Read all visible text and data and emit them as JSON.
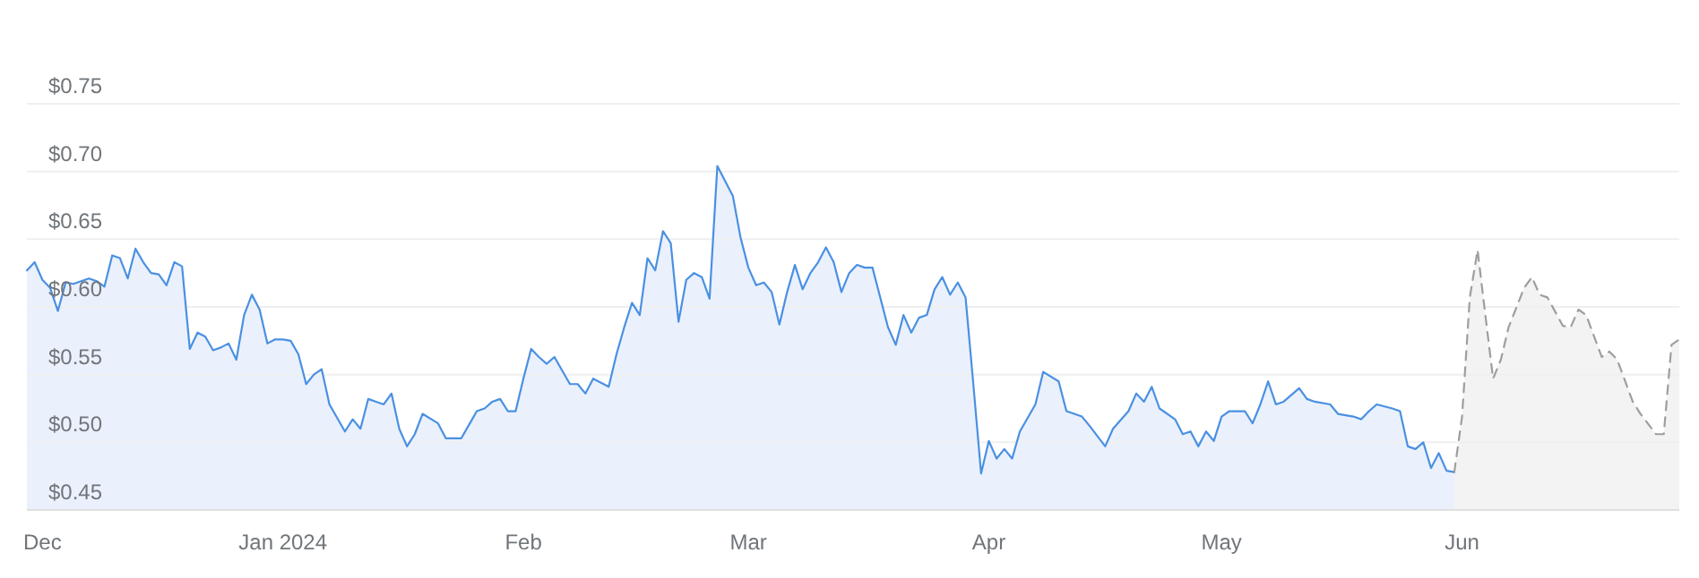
{
  "chart_data": {
    "type": "area",
    "xlim": [
      "2023-11-29",
      "2024-06-29"
    ],
    "ylim": [
      0.45,
      0.75
    ],
    "xticks": [
      {
        "value": "2023-12-01",
        "label": "Dec"
      },
      {
        "value": "2024-01-01",
        "label": "Jan 2024"
      },
      {
        "value": "2024-02-01",
        "label": "Feb"
      },
      {
        "value": "2024-03-01",
        "label": "Mar"
      },
      {
        "value": "2024-04-01",
        "label": "Apr"
      },
      {
        "value": "2024-05-01",
        "label": "May"
      },
      {
        "value": "2024-06-01",
        "label": "Jun"
      }
    ],
    "yticks": [
      {
        "value": 0.45,
        "label": "$0.45"
      },
      {
        "value": 0.5,
        "label": "$0.50"
      },
      {
        "value": 0.55,
        "label": "$0.55"
      },
      {
        "value": 0.6,
        "label": "$0.60"
      },
      {
        "value": 0.65,
        "label": "$0.65"
      },
      {
        "value": 0.7,
        "label": "$0.70"
      },
      {
        "value": 0.75,
        "label": "$0.75"
      }
    ],
    "grid": "y",
    "series": [
      {
        "color": "#4a90e2",
        "line_style": "solid",
        "x": [
          "2023-11-29",
          "2023-11-30",
          "2023-12-01",
          "2023-12-02",
          "2023-12-03",
          "2023-12-04",
          "2023-12-05",
          "2023-12-07",
          "2023-12-08",
          "2023-12-09",
          "2023-12-10",
          "2023-12-11",
          "2023-12-12",
          "2023-12-13",
          "2023-12-14",
          "2023-12-15",
          "2023-12-16",
          "2023-12-17",
          "2023-12-18",
          "2023-12-19",
          "2023-12-20",
          "2023-12-21",
          "2023-12-22",
          "2023-12-23",
          "2023-12-24",
          "2023-12-25",
          "2023-12-26",
          "2023-12-27",
          "2023-12-28",
          "2023-12-29",
          "2023-12-30",
          "2023-12-31",
          "2024-01-01",
          "2024-01-02",
          "2024-01-03",
          "2024-01-04",
          "2024-01-05",
          "2024-01-06",
          "2024-01-07",
          "2024-01-09",
          "2024-01-10",
          "2024-01-11",
          "2024-01-12",
          "2024-01-13",
          "2024-01-14",
          "2024-01-15",
          "2024-01-16",
          "2024-01-17",
          "2024-01-18",
          "2024-01-19",
          "2024-01-21",
          "2024-01-22",
          "2024-01-23",
          "2024-01-24",
          "2024-01-25",
          "2024-01-26",
          "2024-01-27",
          "2024-01-28",
          "2024-01-29",
          "2024-01-30",
          "2024-01-31",
          "2024-02-01",
          "2024-02-02",
          "2024-02-03",
          "2024-02-04",
          "2024-02-05",
          "2024-02-07",
          "2024-02-08",
          "2024-02-09",
          "2024-02-10",
          "2024-02-12",
          "2024-02-13",
          "2024-02-14",
          "2024-02-15",
          "2024-02-16",
          "2024-02-17",
          "2024-02-18",
          "2024-02-19",
          "2024-02-20",
          "2024-02-21",
          "2024-02-22",
          "2024-02-23",
          "2024-02-24",
          "2024-02-25",
          "2024-02-26",
          "2024-02-27",
          "2024-02-28",
          "2024-02-29",
          "2024-03-01",
          "2024-03-02",
          "2024-03-03",
          "2024-03-04",
          "2024-03-05",
          "2024-03-06",
          "2024-03-07",
          "2024-03-08",
          "2024-03-09",
          "2024-03-10",
          "2024-03-11",
          "2024-03-12",
          "2024-03-13",
          "2024-03-14",
          "2024-03-15",
          "2024-03-16",
          "2024-03-17",
          "2024-03-18",
          "2024-03-19",
          "2024-03-20",
          "2024-03-21",
          "2024-03-22",
          "2024-03-23",
          "2024-03-24",
          "2024-03-25",
          "2024-03-26",
          "2024-03-27",
          "2024-03-28",
          "2024-03-29",
          "2024-03-30",
          "2024-03-31",
          "2024-04-01",
          "2024-04-02",
          "2024-04-03",
          "2024-04-04",
          "2024-04-05",
          "2024-04-07",
          "2024-04-08",
          "2024-04-10",
          "2024-04-11",
          "2024-04-12",
          "2024-04-13",
          "2024-04-14",
          "2024-04-16",
          "2024-04-17",
          "2024-04-19",
          "2024-04-20",
          "2024-04-21",
          "2024-04-22",
          "2024-04-23",
          "2024-04-25",
          "2024-04-26",
          "2024-04-27",
          "2024-04-28",
          "2024-04-29",
          "2024-04-30",
          "2024-05-01",
          "2024-05-02",
          "2024-05-04",
          "2024-05-05",
          "2024-05-06",
          "2024-05-07",
          "2024-05-08",
          "2024-05-09",
          "2024-05-11",
          "2024-05-12",
          "2024-05-13",
          "2024-05-15",
          "2024-05-16",
          "2024-05-18",
          "2024-05-19",
          "2024-05-20",
          "2024-05-21",
          "2024-05-23",
          "2024-05-24",
          "2024-05-25",
          "2024-05-26",
          "2024-05-27",
          "2024-05-28",
          "2024-05-29",
          "2024-05-30",
          "2024-05-31"
        ],
        "values": [
          0.627,
          0.633,
          0.62,
          0.614,
          0.597,
          0.618,
          0.617,
          0.621,
          0.619,
          0.615,
          0.638,
          0.636,
          0.621,
          0.643,
          0.633,
          0.625,
          0.624,
          0.616,
          0.633,
          0.63,
          0.569,
          0.581,
          0.578,
          0.568,
          0.57,
          0.573,
          0.561,
          0.594,
          0.609,
          0.598,
          0.573,
          0.576,
          0.576,
          0.575,
          0.565,
          0.543,
          0.55,
          0.554,
          0.528,
          0.508,
          0.517,
          0.51,
          0.532,
          0.53,
          0.528,
          0.536,
          0.51,
          0.497,
          0.506,
          0.521,
          0.514,
          0.503,
          0.503,
          0.503,
          0.513,
          0.523,
          0.525,
          0.53,
          0.532,
          0.523,
          0.523,
          0.547,
          0.569,
          0.563,
          0.558,
          0.563,
          0.543,
          0.543,
          0.536,
          0.547,
          0.541,
          0.565,
          0.585,
          0.603,
          0.594,
          0.636,
          0.627,
          0.656,
          0.647,
          0.589,
          0.62,
          0.625,
          0.622,
          0.606,
          0.704,
          0.693,
          0.682,
          0.651,
          0.629,
          0.616,
          0.618,
          0.611,
          0.587,
          0.611,
          0.631,
          0.613,
          0.625,
          0.633,
          0.644,
          0.633,
          0.611,
          0.625,
          0.631,
          0.629,
          0.629,
          0.607,
          0.585,
          0.572,
          0.594,
          0.581,
          0.592,
          0.594,
          0.613,
          0.622,
          0.609,
          0.618,
          0.607,
          0.543,
          0.477,
          0.501,
          0.488,
          0.495,
          0.488,
          0.508,
          0.528,
          0.552,
          0.545,
          0.523,
          0.521,
          0.519,
          0.512,
          0.497,
          0.51,
          0.523,
          0.536,
          0.53,
          0.541,
          0.525,
          0.517,
          0.506,
          0.508,
          0.497,
          0.508,
          0.501,
          0.519,
          0.523,
          0.523,
          0.514,
          0.528,
          0.545,
          0.528,
          0.53,
          0.54,
          0.532,
          0.53,
          0.528,
          0.521,
          0.519,
          0.517,
          0.523,
          0.528,
          0.525,
          0.523,
          0.497,
          0.495,
          0.5,
          0.481,
          0.492,
          0.479,
          0.478
        ]
      },
      {
        "color": "#9e9e9e",
        "line_style": "dashed",
        "x": [
          "2024-05-31",
          "2024-06-01",
          "2024-06-02",
          "2024-06-03",
          "2024-06-04",
          "2024-06-05",
          "2024-06-06",
          "2024-06-07",
          "2024-06-09",
          "2024-06-10",
          "2024-06-11",
          "2024-06-12",
          "2024-06-14",
          "2024-06-15",
          "2024-06-16",
          "2024-06-17",
          "2024-06-19",
          "2024-06-20",
          "2024-06-21",
          "2024-06-23",
          "2024-06-24",
          "2024-06-26",
          "2024-06-27",
          "2024-06-28",
          "2024-06-29"
        ],
        "values": [
          0.478,
          0.519,
          0.607,
          0.642,
          0.594,
          0.547,
          0.561,
          0.585,
          0.614,
          0.622,
          0.609,
          0.607,
          0.586,
          0.585,
          0.598,
          0.594,
          0.563,
          0.567,
          0.561,
          0.53,
          0.521,
          0.506,
          0.506,
          0.572,
          0.576
        ]
      }
    ]
  }
}
